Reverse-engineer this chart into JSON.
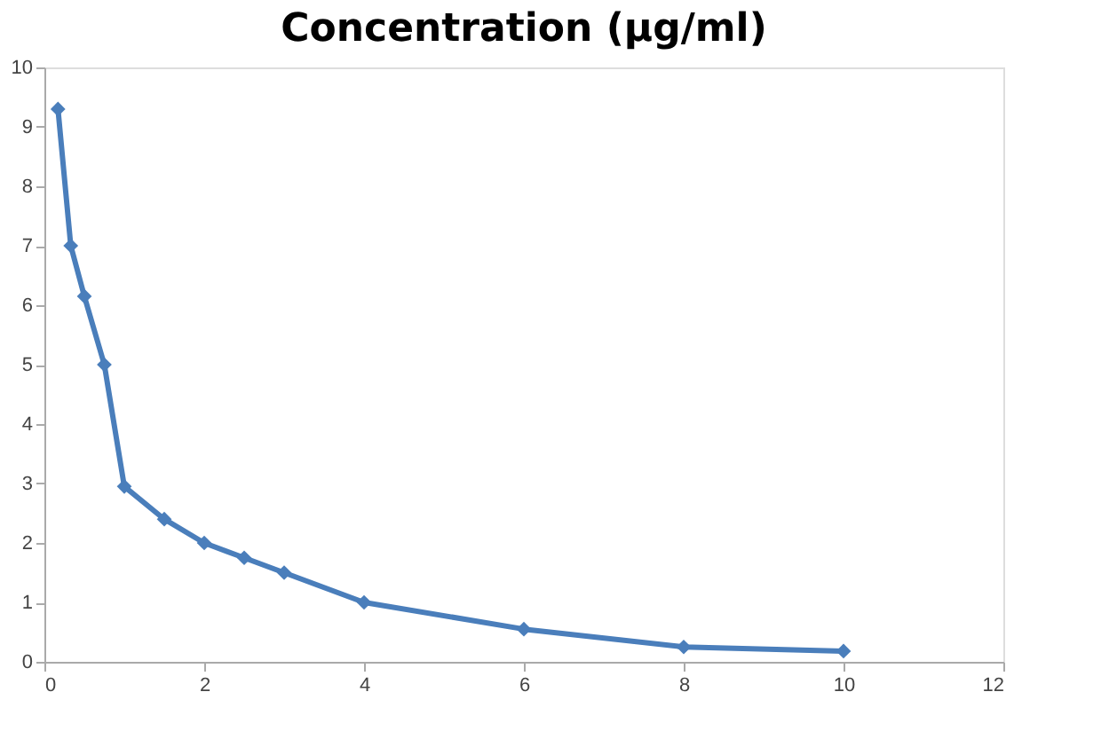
{
  "chart_data": {
    "type": "line",
    "title": "Concentration (μg/ml)",
    "x": [
      0.17,
      0.33,
      0.5,
      0.75,
      1,
      1.5,
      2,
      2.5,
      3,
      4,
      6,
      8,
      10
    ],
    "series": [
      {
        "color": "#4a7ebb",
        "values": [
          9.3,
          7.0,
          6.15,
          5.0,
          2.95,
          2.4,
          2.0,
          1.75,
          1.5,
          1.0,
          0.55,
          0.25,
          0.18
        ]
      }
    ],
    "xlim": [
      0,
      12
    ],
    "xticks": [
      0,
      2,
      4,
      6,
      8,
      10,
      12
    ],
    "ylim": [
      0,
      10
    ],
    "yticks": [
      0,
      1,
      2,
      3,
      4,
      5,
      6,
      7,
      8,
      9,
      10
    ],
    "grid": false,
    "legend": false,
    "marker": "diamond",
    "line_style": "solid"
  }
}
